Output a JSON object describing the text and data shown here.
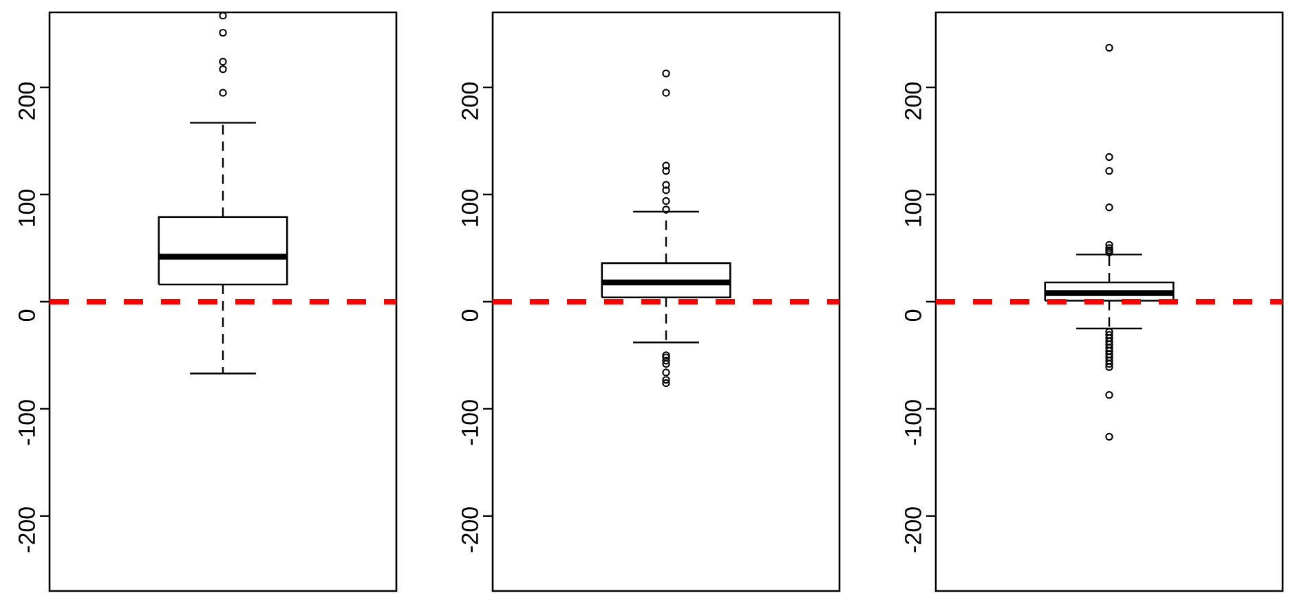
{
  "chart_data": [
    {
      "type": "box",
      "categories": [
        null
      ],
      "boxes": [
        {
          "low": -67,
          "q1": 16,
          "median": 42,
          "q3": 79,
          "high": 167,
          "outliers": [
            195,
            217,
            224,
            251,
            267
          ]
        }
      ],
      "ylim": [
        -270,
        270
      ],
      "yticks": [
        -200,
        -100,
        0,
        100,
        200
      ],
      "tick_labels": "y",
      "ref_lines": [
        {
          "axis": "y",
          "value": 0,
          "color": "#ff0000",
          "line_style": "dashed"
        }
      ]
    },
    {
      "type": "box",
      "categories": [
        null
      ],
      "boxes": [
        {
          "low": -38,
          "q1": 4,
          "median": 18,
          "q3": 36,
          "high": 84,
          "outliers": [
            213,
            195,
            127,
            122,
            109,
            104,
            94,
            86,
            -50,
            -52,
            -55,
            -58,
            -66,
            -73,
            -76
          ]
        }
      ],
      "ylim": [
        -270,
        270
      ],
      "yticks": [
        -200,
        -100,
        0,
        100,
        200
      ],
      "tick_labels": "y",
      "ref_lines": [
        {
          "axis": "y",
          "value": 0,
          "color": "#ff0000",
          "line_style": "dashed"
        }
      ]
    },
    {
      "type": "box",
      "categories": [
        null
      ],
      "boxes": [
        {
          "low": -25,
          "q1": 1,
          "median": 8,
          "q3": 18,
          "high": 44,
          "outliers": [
            237,
            135,
            122,
            88,
            53,
            50,
            48,
            46,
            -28,
            -31,
            -34,
            -37,
            -40,
            -43,
            -46,
            -49,
            -52,
            -55,
            -58,
            -61,
            -87,
            -126
          ]
        }
      ],
      "ylim": [
        -270,
        270
      ],
      "yticks": [
        -200,
        -100,
        0,
        100,
        200
      ],
      "tick_labels": "y",
      "ref_lines": [
        {
          "axis": "y",
          "value": 0,
          "color": "#ff0000",
          "line_style": "dashed"
        }
      ]
    }
  ]
}
